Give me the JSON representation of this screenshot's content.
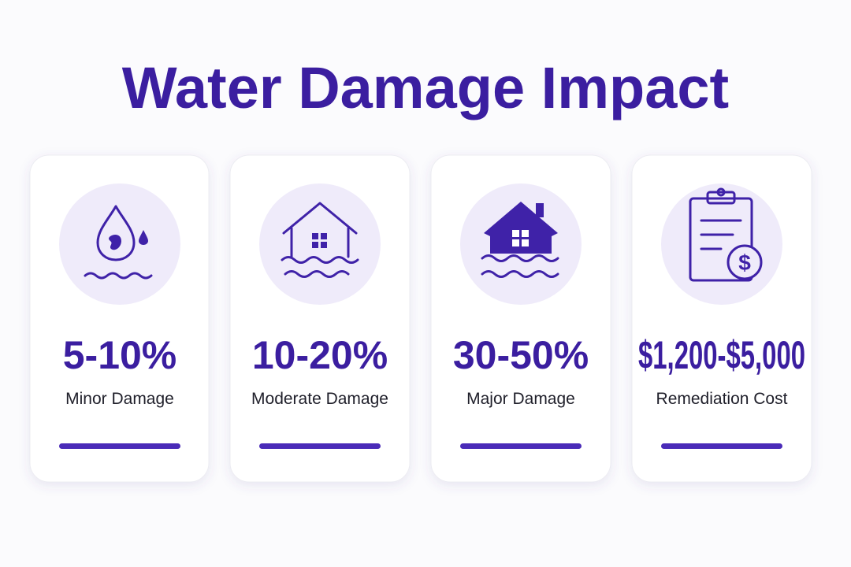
{
  "title": "Water Damage Impact",
  "cards": [
    {
      "value": "5-10%",
      "label": "Minor Damage"
    },
    {
      "value": "10-20%",
      "label": "Moderate Damage"
    },
    {
      "value": "30-50%",
      "label": "Major Damage"
    },
    {
      "value": "$1,200-$5,000",
      "label": "Remediation Cost"
    }
  ]
}
